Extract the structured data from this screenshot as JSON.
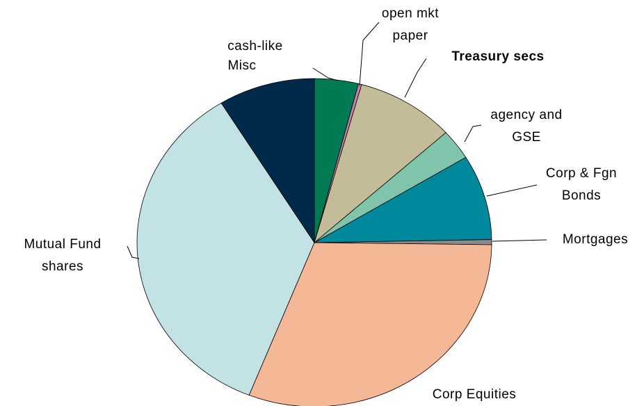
{
  "chart_data": {
    "type": "pie",
    "categories": [
      "cash-like",
      "open mkt paper",
      "Treasury secs",
      "agency and GSE",
      "Corp & Fgn Bonds",
      "Mortgages",
      "Corp Equities",
      "Mutual Fund shares",
      "Misc"
    ],
    "values": [
      4,
      0.3,
      9,
      3,
      8.4,
      0.5,
      30.8,
      35.2,
      8.8
    ],
    "colors": [
      "#007a52",
      "#c080a8",
      "#c4bc98",
      "#80c4ac",
      "#00889c",
      "#8a8a8a",
      "#f5b896",
      "#c2e2e6",
      "#00294a"
    ]
  }
}
